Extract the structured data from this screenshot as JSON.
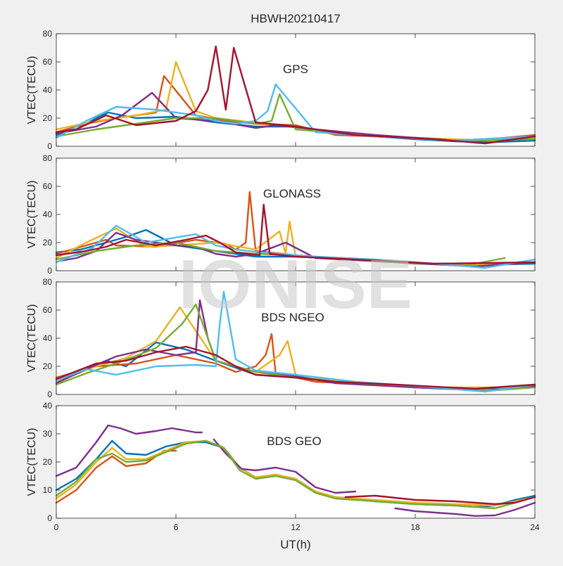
{
  "figure": {
    "title": "HBWH20210417",
    "watermark": "IONISE",
    "xlabel": "UT(h)",
    "xticks": [
      "0",
      "6",
      "12",
      "18",
      "24"
    ],
    "xlim": [
      0,
      24
    ],
    "background": "#f0f0f0",
    "axes_background": "#ffffff",
    "palette": [
      "#0072bd",
      "#d95319",
      "#edb120",
      "#7e2f8e",
      "#77ac30",
      "#4dbeee",
      "#a2142f"
    ]
  },
  "chart_data": [
    {
      "type": "line",
      "panel_label": "GPS",
      "ylabel": "VTEC(TECU)",
      "ylim": [
        0,
        80
      ],
      "yticks": [
        "0",
        "20",
        "40",
        "60",
        "80"
      ],
      "grid": false,
      "series": [
        {
          "color": "#0072bd",
          "x": [
            0,
            1,
            2,
            2.6,
            4,
            6,
            8,
            10,
            12,
            14,
            16,
            18,
            20,
            22,
            24
          ],
          "y": [
            8,
            12,
            20,
            24,
            20,
            21,
            17,
            14,
            14,
            9,
            7,
            5,
            3.5,
            3,
            4
          ]
        },
        {
          "color": "#d95319",
          "x": [
            0,
            1.5,
            3,
            5,
            5.4,
            7,
            8.5,
            10,
            12,
            14,
            18,
            21,
            24
          ],
          "y": [
            10,
            16,
            20,
            24,
            50,
            22,
            18,
            16,
            15,
            8,
            6,
            4,
            8
          ]
        },
        {
          "color": "#edb120",
          "x": [
            0,
            2,
            4,
            5.5,
            6,
            7,
            8,
            9.8,
            12,
            15,
            18,
            22,
            24
          ],
          "y": [
            12,
            18,
            22,
            26,
            60,
            25,
            20,
            17,
            14,
            8,
            6,
            4,
            6
          ]
        },
        {
          "color": "#7e2f8e",
          "x": [
            0,
            2,
            3.3,
            4.8,
            6,
            8,
            10,
            11,
            13,
            16,
            20,
            24
          ],
          "y": [
            9,
            14,
            22,
            38,
            20,
            18,
            13,
            15,
            12,
            8,
            4,
            7
          ]
        },
        {
          "color": "#77ac30",
          "x": [
            0,
            2,
            4,
            6,
            8,
            9,
            10,
            10.8,
            11.2,
            12,
            16,
            20,
            24
          ],
          "y": [
            7,
            12,
            16,
            20,
            20,
            18,
            16,
            18,
            37,
            12,
            7,
            4,
            5
          ]
        },
        {
          "color": "#4dbeee",
          "x": [
            0,
            1.5,
            3,
            5,
            7,
            8,
            9,
            10,
            10.6,
            11,
            13,
            16,
            20,
            24
          ],
          "y": [
            6,
            18,
            28,
            26,
            22,
            18,
            16,
            18,
            25,
            44,
            10,
            7,
            4,
            7
          ]
        },
        {
          "color": "#a2142f",
          "x": [
            0,
            1,
            2.5,
            4,
            6,
            7,
            7.6,
            8,
            8.5,
            8.9,
            10,
            12,
            15,
            19,
            21.5,
            24
          ],
          "y": [
            10,
            12,
            22,
            15,
            18,
            25,
            40,
            71,
            26,
            70,
            17,
            14,
            8,
            5,
            2,
            7
          ]
        }
      ]
    },
    {
      "type": "line",
      "panel_label": "GLONASS",
      "ylabel": "VTEC(TECU)",
      "ylim": [
        0,
        80
      ],
      "yticks": [
        "0",
        "20",
        "40",
        "60",
        "80"
      ],
      "grid": false,
      "series": [
        {
          "color": "#0072bd",
          "x": [
            0,
            1.2,
            2.5,
            3.5,
            4.5,
            6,
            8,
            10,
            12,
            15,
            18,
            21,
            24
          ],
          "y": [
            13,
            15,
            20,
            24,
            29,
            18,
            14,
            10,
            10,
            8,
            5,
            4,
            5
          ]
        },
        {
          "color": "#d95319",
          "x": [
            0,
            1,
            2.5,
            3,
            5,
            7,
            8.5,
            9,
            9.5,
            9.7,
            10,
            12,
            16,
            20,
            24
          ],
          "y": [
            12,
            16,
            22,
            18,
            17,
            22,
            19,
            15,
            20,
            56,
            14,
            11,
            7,
            4,
            6
          ]
        },
        {
          "color": "#edb120",
          "x": [
            0,
            1.5,
            3,
            4.5,
            6,
            8,
            10,
            11.2,
            11.5,
            11.7,
            12,
            15,
            18,
            22,
            24
          ],
          "y": [
            9,
            20,
            30,
            17,
            18,
            20,
            15,
            28,
            12,
            35,
            10,
            8,
            5,
            4,
            6
          ]
        },
        {
          "color": "#7e2f8e",
          "x": [
            0.2,
            1,
            2,
            3,
            4,
            6,
            7,
            8,
            9,
            10,
            11.5,
            13,
            17,
            21,
            24
          ],
          "y": [
            7,
            9,
            14,
            27,
            22,
            18,
            17,
            12,
            10,
            12,
            20,
            9,
            6,
            3,
            6
          ]
        },
        {
          "color": "#77ac30",
          "x": [
            0,
            2,
            4,
            6,
            8,
            10,
            12,
            14,
            17,
            19,
            21,
            22.5
          ],
          "y": [
            8,
            14,
            18,
            20,
            14,
            12,
            11,
            9,
            6,
            5,
            5,
            9
          ]
        },
        {
          "color": "#4dbeee",
          "x": [
            0,
            1.8,
            3,
            4.5,
            7,
            8,
            9,
            11,
            13,
            16,
            19,
            21.5,
            24
          ],
          "y": [
            6,
            16,
            32,
            20,
            26,
            18,
            15,
            12,
            10,
            8,
            5,
            2,
            8
          ]
        },
        {
          "color": "#a2142f",
          "x": [
            0,
            1.5,
            2.5,
            3.5,
            5,
            6.5,
            7.5,
            8.2,
            9,
            10.2,
            10.4,
            10.7,
            12,
            15,
            19,
            24
          ],
          "y": [
            11,
            14,
            17,
            22,
            18,
            22,
            25,
            20,
            13,
            11,
            47,
            12,
            10,
            8,
            5,
            6
          ]
        }
      ]
    },
    {
      "type": "line",
      "panel_label": "BDS NGEO",
      "ylabel": "VTEC(TECU)",
      "ylim": [
        0,
        80
      ],
      "yticks": [
        "0",
        "20",
        "40",
        "60",
        "80"
      ],
      "grid": false,
      "series": [
        {
          "color": "#0072bd",
          "x": [
            0,
            1.5,
            2.5,
            3.5,
            5,
            6.5,
            8,
            10,
            12,
            15,
            18,
            21,
            24
          ],
          "y": [
            10,
            18,
            24,
            20,
            37,
            32,
            24,
            14,
            12,
            8,
            5,
            3,
            6
          ]
        },
        {
          "color": "#d95319",
          "x": [
            0,
            2,
            4,
            6,
            8,
            9,
            10,
            10.5,
            10.8,
            11,
            13,
            16,
            20,
            24
          ],
          "y": [
            12,
            20,
            22,
            28,
            22,
            16,
            20,
            28,
            43,
            15,
            9,
            7,
            4,
            6
          ]
        },
        {
          "color": "#edb120",
          "x": [
            0,
            2,
            3.5,
            5,
            6.2,
            8,
            10,
            11.2,
            11.6,
            12,
            15,
            19,
            24
          ],
          "y": [
            9,
            20,
            26,
            38,
            62,
            24,
            16,
            28,
            38,
            14,
            8,
            5,
            5
          ]
        },
        {
          "color": "#7e2f8e",
          "x": [
            0,
            1.5,
            3,
            4.5,
            6,
            7,
            7.2,
            7.6,
            8,
            10,
            12,
            14,
            18,
            22,
            24
          ],
          "y": [
            8,
            18,
            27,
            32,
            28,
            30,
            67,
            40,
            24,
            16,
            13,
            8,
            5,
            3,
            6
          ]
        },
        {
          "color": "#77ac30",
          "x": [
            0,
            1.5,
            3,
            5,
            6.3,
            7,
            8,
            10,
            12,
            14,
            18,
            22,
            24
          ],
          "y": [
            7,
            15,
            22,
            33,
            50,
            64,
            24,
            16,
            12,
            9,
            6,
            3,
            5
          ]
        },
        {
          "color": "#4dbeee",
          "x": [
            0,
            1.5,
            3,
            5,
            7,
            8,
            8.2,
            8.4,
            9,
            10,
            12,
            15,
            18,
            21.5,
            24
          ],
          "y": [
            10,
            18,
            14,
            20,
            21,
            20,
            50,
            73,
            25,
            17,
            14,
            9,
            6,
            2,
            7
          ]
        },
        {
          "color": "#a2142f",
          "x": [
            0,
            2,
            3.5,
            5,
            6.5,
            8,
            9,
            10,
            12,
            14,
            17,
            21,
            24
          ],
          "y": [
            11,
            22,
            24,
            30,
            34,
            28,
            20,
            14,
            12,
            9,
            7,
            4,
            7
          ]
        }
      ]
    },
    {
      "type": "line",
      "panel_label": "BDS GEO",
      "ylabel": "VTEC(TECU)",
      "ylim": [
        0,
        40
      ],
      "yticks": [
        "0",
        "10",
        "20",
        "30",
        "40"
      ],
      "grid": false,
      "series": [
        {
          "color": "#0072bd",
          "x": [
            0,
            1,
            2,
            2.8,
            3.5,
            4.5,
            5.5,
            6.5,
            7.5,
            8.4,
            9.2,
            10,
            11,
            12,
            13,
            14,
            16,
            18,
            20,
            21,
            22,
            23,
            24
          ],
          "y": [
            10,
            14,
            21,
            27.5,
            23,
            22.5,
            25.5,
            27,
            27,
            25,
            18,
            14.5,
            15.5,
            14,
            9.5,
            7.5,
            6,
            5,
            4.5,
            4,
            4.5,
            6.5,
            8
          ]
        },
        {
          "color": "#d95319",
          "x": [
            0,
            1,
            2,
            2.8,
            3.5,
            4.5,
            5.4,
            6
          ],
          "y": [
            5.5,
            10,
            18,
            22,
            18.5,
            19.5,
            24,
            24
          ]
        },
        {
          "color": "#edb120",
          "x": [
            0,
            1,
            2,
            2.8,
            3.5,
            4.5,
            5.5,
            6.5,
            7.5,
            8.3,
            9.2,
            10,
            11,
            12,
            13,
            14,
            16,
            18,
            20,
            22,
            23,
            24
          ],
          "y": [
            7,
            12,
            20,
            25,
            21,
            21,
            24,
            27,
            27.5,
            25.5,
            18,
            14.5,
            15.5,
            14,
            9.5,
            7.5,
            6.5,
            5.5,
            5,
            4.5,
            6,
            7.5
          ]
        },
        {
          "color": "#7e2f8e",
          "x": [
            0,
            1,
            2,
            2.6,
            3.2,
            4,
            5,
            5.8,
            7,
            7.3
          ],
          "y": [
            15,
            18,
            27,
            33,
            32,
            30,
            31,
            32,
            30.5,
            30.5
          ]
        },
        {
          "color": "#7e2f8e",
          "x": [
            7.9,
            8.5,
            9.3,
            10,
            11,
            12,
            13,
            14,
            15
          ],
          "y": [
            28,
            23,
            17.5,
            17,
            18,
            16.5,
            11,
            9,
            9.5
          ]
        },
        {
          "color": "#77ac30",
          "x": [
            0,
            1,
            2,
            2.8,
            3.5,
            4.5,
            5.5,
            6.5,
            7.5,
            8.4,
            9.2,
            10,
            11,
            12,
            13,
            14,
            16,
            18,
            20,
            22,
            23,
            24
          ],
          "y": [
            8,
            13,
            21,
            23,
            20,
            20.5,
            23.5,
            26.5,
            27.5,
            25,
            17,
            14,
            15,
            13.5,
            9,
            7,
            6,
            5,
            4.5,
            3.5,
            5.5,
            7.5
          ]
        },
        {
          "color": "#a2142f",
          "x": [
            14.5,
            16,
            18,
            20,
            22,
            23,
            24
          ],
          "y": [
            7.5,
            8,
            6.5,
            6,
            5,
            5.5,
            7.5
          ]
        },
        {
          "color": "#7e2f8e",
          "x": [
            17,
            18,
            19,
            20,
            21,
            22,
            23,
            24
          ],
          "y": [
            3.5,
            2.5,
            2,
            1.5,
            0.8,
            1,
            3,
            5.5
          ]
        }
      ]
    }
  ]
}
